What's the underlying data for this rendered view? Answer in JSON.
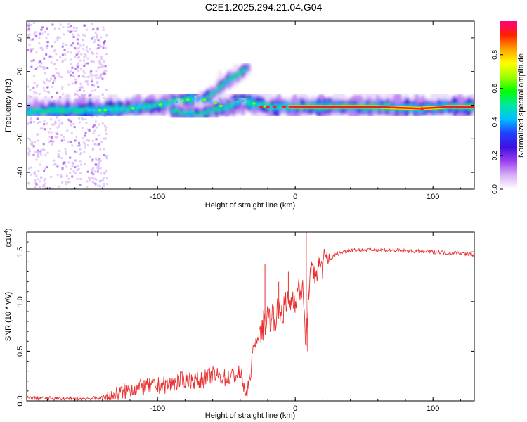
{
  "title": "C2E1.2025.294.21.04.G04",
  "chart_data": [
    {
      "type": "heatmap",
      "name": "spectrogram",
      "xlabel": "Height of straight line (km)",
      "ylabel": "Frequency (Hz)",
      "xlim": [
        -195,
        130
      ],
      "ylim": [
        -50,
        50
      ],
      "xticks": [
        -100,
        0,
        100
      ],
      "yticks": [
        -40,
        -20,
        0,
        20,
        40
      ],
      "colorbar": {
        "label": "Normalized spectral amplitude",
        "range": [
          0,
          1
        ],
        "ticks": [
          0.0,
          0.2,
          0.4,
          0.6,
          0.8
        ],
        "tick_labels": [
          "0.0",
          "0.2",
          "0.4",
          "0.6",
          "0.8"
        ],
        "colormap": [
          "#ffffff",
          "#d8b0f8",
          "#9a40f0",
          "#4010e0",
          "#2040ff",
          "#00c0ff",
          "#00e8a0",
          "#00ff00",
          "#a0ff00",
          "#ffff00",
          "#ffa000",
          "#ff2000",
          "#ff0080"
        ]
      },
      "ridges": [
        {
          "name": "main",
          "points": [
            [
              -195,
              -4
            ],
            [
              -160,
              -3
            ],
            [
              -140,
              -3
            ],
            [
              -120,
              -2
            ],
            [
              -100,
              0
            ],
            [
              -80,
              3
            ],
            [
              -70,
              4
            ],
            [
              -60,
              2
            ],
            [
              -50,
              -2
            ],
            [
              -40,
              3
            ],
            [
              -30,
              1
            ],
            [
              -20,
              -1
            ],
            [
              -10,
              -1
            ],
            [
              0,
              -1
            ],
            [
              20,
              -1
            ],
            [
              60,
              -1
            ],
            [
              90,
              -2
            ],
            [
              110,
              -1
            ],
            [
              130,
              -1
            ]
          ]
        },
        {
          "name": "upper-branch",
          "points": [
            [
              -70,
              2
            ],
            [
              -60,
              7
            ],
            [
              -50,
              14
            ],
            [
              -40,
              19
            ],
            [
              -35,
              22
            ]
          ]
        },
        {
          "name": "lower-branch",
          "points": [
            [
              -90,
              -3
            ],
            [
              -80,
              -5
            ],
            [
              -70,
              -5
            ],
            [
              -60,
              -3
            ],
            [
              -50,
              -1
            ],
            [
              -40,
              2
            ]
          ]
        }
      ]
    },
    {
      "type": "line",
      "name": "snr",
      "xlabel": "Height of straight line (km)",
      "ylabel": "SNR (10 * v/v)",
      "scale_label": "(x10",
      "scale_exponent": "4",
      "xlim": [
        -195,
        130
      ],
      "ylim": [
        0,
        1.7
      ],
      "xticks": [
        -100,
        0,
        100
      ],
      "yticks": [
        0.0,
        0.5,
        1.0,
        1.5
      ],
      "ytick_labels": [
        "0.0",
        "0.5",
        "1.0",
        "1.5"
      ],
      "color": "#e83030",
      "series": [
        {
          "name": "SNR",
          "x": [
            -195,
            -160,
            -140,
            -130,
            -120,
            -110,
            -100,
            -90,
            -80,
            -70,
            -60,
            -50,
            -40,
            -35,
            -30,
            -25,
            -20,
            -15,
            -10,
            -5,
            0,
            5,
            8,
            10,
            15,
            20,
            25,
            30,
            40,
            60,
            80,
            100,
            105,
            110,
            120,
            130
          ],
          "values": [
            0.03,
            0.02,
            0.03,
            0.06,
            0.12,
            0.14,
            0.15,
            0.17,
            0.22,
            0.2,
            0.26,
            0.23,
            0.28,
            0.04,
            0.55,
            0.72,
            0.85,
            0.86,
            0.9,
            0.98,
            1.05,
            1.15,
            0.55,
            1.22,
            1.32,
            1.38,
            1.42,
            1.48,
            1.52,
            1.52,
            1.51,
            1.5,
            1.5,
            1.49,
            1.49,
            1.47
          ]
        }
      ],
      "spikes": [
        [
          -22,
          1.38
        ],
        [
          -12,
          1.2
        ],
        [
          -5,
          1.3
        ],
        [
          8,
          1.72
        ],
        [
          9,
          0.5
        ]
      ]
    }
  ]
}
